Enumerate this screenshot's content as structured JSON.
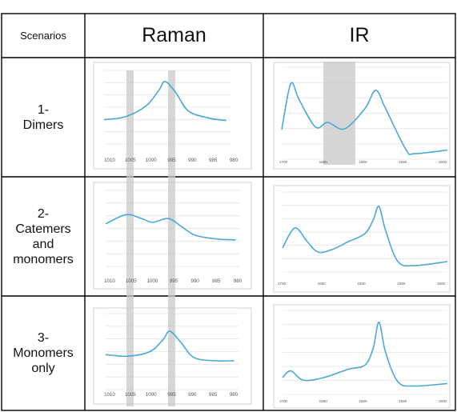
{
  "header": {
    "scenarios": "Scenarios",
    "raman": "Raman",
    "ir": "IR"
  },
  "rows": [
    {
      "line1": "1-",
      "line2": "Dimers",
      "line3": "",
      "line4": ""
    },
    {
      "line1": "2-",
      "line2": "Catemers",
      "line3": "and",
      "line4": "monomers"
    },
    {
      "line1": "3-",
      "line2": "Monomers",
      "line3": "only",
      "line4": ""
    }
  ],
  "raman_ticks": [
    "1010",
    "1005",
    "1000",
    "995",
    "990",
    "985",
    "980"
  ],
  "ir_ticks": [
    "1700",
    "1650",
    "1600",
    "1550",
    "1500"
  ],
  "colors": {
    "curve": "#4aa8d8",
    "highlight": "#c8c8c8",
    "border": "#000000",
    "grid": "#e4e4e4"
  },
  "chart_data": [
    {
      "type": "line",
      "spectrum": "Raman",
      "scenario": "1-Dimers",
      "x": [
        1010,
        1005,
        1000,
        997,
        995.5,
        993,
        990,
        985,
        981
      ],
      "y": [
        0.33,
        0.37,
        0.52,
        0.73,
        0.85,
        0.7,
        0.45,
        0.35,
        0.32
      ],
      "xlim": [
        1010,
        980
      ],
      "ylim": [
        0,
        1
      ]
    },
    {
      "type": "line",
      "spectrum": "IR",
      "scenario": "1-Dimers",
      "x": [
        1701,
        1690,
        1680,
        1660,
        1645,
        1625,
        1600,
        1587,
        1575,
        1550,
        1540,
        1500
      ],
      "y": [
        0.32,
        0.82,
        0.65,
        0.35,
        0.4,
        0.33,
        0.55,
        0.75,
        0.55,
        0.1,
        0.06,
        0.1
      ],
      "xlim": [
        1700,
        1500
      ],
      "ylim": [
        0,
        1
      ]
    },
    {
      "type": "line",
      "spectrum": "Raman",
      "scenario": "2-Catemers and monomers",
      "x": [
        1010,
        1005.5,
        1002,
        999.5,
        996,
        993,
        990,
        985,
        981
      ],
      "y": [
        0.56,
        0.68,
        0.63,
        0.58,
        0.63,
        0.52,
        0.41,
        0.36,
        0.35
      ],
      "xlim": [
        1010,
        980
      ],
      "ylim": [
        0,
        1
      ]
    },
    {
      "type": "line",
      "spectrum": "IR",
      "scenario": "2-Catemers and monomers",
      "x": [
        1700,
        1685,
        1670,
        1657,
        1640,
        1620,
        1600,
        1590,
        1583,
        1575,
        1560,
        1540,
        1500
      ],
      "y": [
        0.3,
        0.55,
        0.38,
        0.25,
        0.28,
        0.38,
        0.48,
        0.65,
        0.82,
        0.52,
        0.13,
        0.08,
        0.13
      ],
      "xlim": [
        1700,
        1500
      ],
      "ylim": [
        0,
        1
      ]
    },
    {
      "type": "line",
      "spectrum": "Raman",
      "scenario": "3-Monomers only",
      "x": [
        1010,
        1005,
        1000,
        997,
        995.5,
        993,
        990,
        985,
        981
      ],
      "y": [
        0.46,
        0.44,
        0.5,
        0.66,
        0.77,
        0.62,
        0.42,
        0.38,
        0.38
      ],
      "xlim": [
        1010,
        980
      ],
      "ylim": [
        0,
        1
      ]
    },
    {
      "type": "line",
      "spectrum": "IR",
      "scenario": "3-Monomers only",
      "x": [
        1700,
        1690,
        1675,
        1650,
        1620,
        1600,
        1590,
        1583,
        1575,
        1560,
        1540,
        1500
      ],
      "y": [
        0.2,
        0.28,
        0.17,
        0.2,
        0.3,
        0.35,
        0.55,
        0.86,
        0.5,
        0.15,
        0.1,
        0.13
      ],
      "xlim": [
        1700,
        1500
      ],
      "ylim": [
        0,
        1
      ]
    }
  ]
}
